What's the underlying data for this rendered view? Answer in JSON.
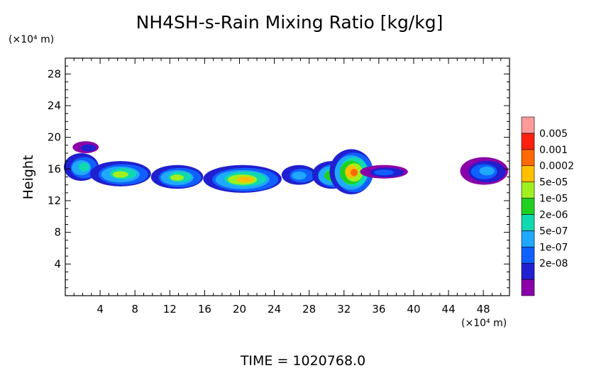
{
  "chart_data": {
    "type": "heatmap",
    "title": "NH4SH-s-Rain Mixing Ratio [kg/kg]",
    "ylabel": "Height",
    "y_unit": "(×10⁴ m)",
    "x_unit": "(×10⁴ m)",
    "xlim": [
      0,
      51
    ],
    "ylim": [
      0,
      30
    ],
    "x_ticks": [
      "4",
      "8",
      "12",
      "16",
      "20",
      "24",
      "28",
      "32",
      "36",
      "40",
      "44",
      "48"
    ],
    "x_tick_values": [
      4,
      8,
      12,
      16,
      20,
      24,
      28,
      32,
      36,
      40,
      44,
      48
    ],
    "y_ticks": [
      "4",
      "8",
      "12",
      "16",
      "20",
      "24",
      "28"
    ],
    "y_tick_values": [
      4,
      8,
      12,
      16,
      20,
      24,
      28
    ],
    "colorbar": {
      "labels": [
        "0.005",
        "0.001",
        "0.0002",
        "5e-05",
        "1e-05",
        "2e-06",
        "5e-07",
        "1e-07",
        "2e-08"
      ],
      "colors": [
        "#8b00a8",
        "#2020d0",
        "#1060ff",
        "#20a8ff",
        "#10d8b0",
        "#20d020",
        "#a0f020",
        "#ffc000",
        "#ff6a00",
        "#ff2010",
        "#ff9a9a"
      ]
    },
    "regions": [
      {
        "x0": 0,
        "x1": 4,
        "y0": 14.5,
        "y1": 18,
        "levels": [
          1,
          2,
          3,
          4
        ]
      },
      {
        "x0": 1,
        "x1": 4,
        "y0": 18,
        "y1": 19.5,
        "levels": [
          0,
          1
        ]
      },
      {
        "x0": 3,
        "x1": 10,
        "y0": 13.8,
        "y1": 17,
        "levels": [
          1,
          2,
          3,
          4,
          6
        ]
      },
      {
        "x0": 10,
        "x1": 16,
        "y0": 13.5,
        "y1": 16.5,
        "levels": [
          1,
          2,
          3,
          4,
          6
        ]
      },
      {
        "x0": 16,
        "x1": 25,
        "y0": 13.0,
        "y1": 16.5,
        "levels": [
          1,
          2,
          3,
          4,
          6,
          7
        ]
      },
      {
        "x0": 25,
        "x1": 29,
        "y0": 14.0,
        "y1": 16.5,
        "levels": [
          1,
          2,
          3
        ]
      },
      {
        "x0": 28.5,
        "x1": 33,
        "y0": 13.5,
        "y1": 17,
        "levels": [
          1,
          2,
          3,
          4,
          5,
          6
        ]
      },
      {
        "x0": 30.5,
        "x1": 35.5,
        "y0": 12.8,
        "y1": 18.5,
        "levels": [
          1,
          2,
          3,
          4,
          5,
          6,
          7,
          8
        ]
      },
      {
        "x0": 34,
        "x1": 39.5,
        "y0": 14.8,
        "y1": 16.5,
        "levels": [
          0,
          1,
          2
        ]
      },
      {
        "x0": 45.5,
        "x1": 51,
        "y0": 14,
        "y1": 17.5,
        "levels": [
          0,
          1,
          2,
          3
        ]
      }
    ]
  },
  "footer": {
    "time_label": "TIME = 1020768.0"
  }
}
